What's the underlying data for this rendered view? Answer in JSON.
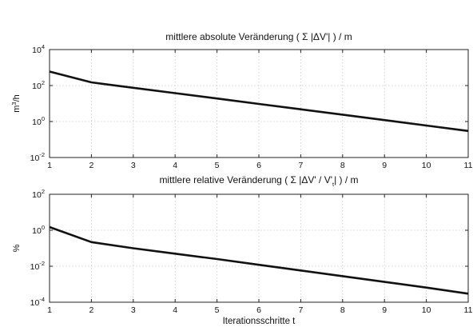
{
  "chart_data": [
    {
      "type": "line",
      "title": "mittlere absolute Veränderung ( Σ |ΔV'| ) / m",
      "xlabel": "",
      "ylabel": "m³/h",
      "yscale": "log",
      "xlim": [
        1,
        11
      ],
      "ylim": [
        0.01,
        10000
      ],
      "x_ticks": [
        1,
        2,
        3,
        4,
        5,
        6,
        7,
        8,
        9,
        10,
        11
      ],
      "y_tick_exponents": [
        -2,
        0,
        2,
        4
      ],
      "y_tick_base": "10",
      "grid": true,
      "x": [
        1,
        2,
        3,
        4,
        5,
        6,
        7,
        8,
        9,
        10,
        11
      ],
      "y": [
        600,
        150,
        75,
        38,
        19,
        9.5,
        4.8,
        2.4,
        1.2,
        0.6,
        0.3
      ]
    },
    {
      "type": "line",
      "title": "mittlere relative Veränderung ( Σ |ΔV' / V'ₜ| ) / m",
      "xlabel": "Iterationsschritte t",
      "ylabel": "%",
      "yscale": "log",
      "xlim": [
        1,
        11
      ],
      "ylim": [
        0.0001,
        100
      ],
      "x_ticks": [
        1,
        2,
        3,
        4,
        5,
        6,
        7,
        8,
        9,
        10,
        11
      ],
      "y_tick_exponents": [
        -4,
        -2,
        0,
        2
      ],
      "y_tick_base": "10",
      "grid": true,
      "x": [
        1,
        2,
        3,
        4,
        5,
        6,
        7,
        8,
        9,
        10,
        11
      ],
      "y": [
        1.5,
        0.22,
        0.1,
        0.05,
        0.025,
        0.012,
        0.0058,
        0.0028,
        0.00135,
        0.00065,
        0.0003
      ]
    }
  ]
}
